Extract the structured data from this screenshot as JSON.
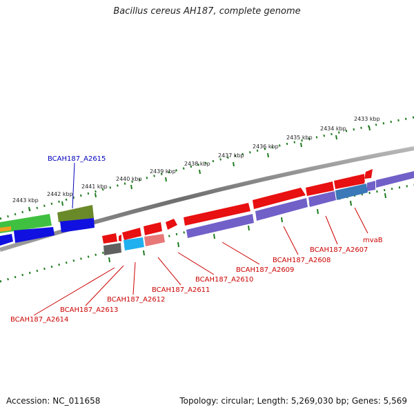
{
  "title": "Bacillus cereus AH187, complete genome",
  "footer": {
    "accession": "Accession: NC_011658",
    "topology": "Topology: circular; Length: 5,269,030 bp; Genes: 5,569"
  },
  "scale_labels": [
    "2433 kbp",
    "2434 kbp",
    "2435 kbp",
    "2436 kbp",
    "2437 kbp",
    "2438 kbp",
    "2439 kbp",
    "2440 kbp",
    "2441 kbp",
    "2442 kbp",
    "2443 kbp"
  ],
  "gene_labels": {
    "mvaB": "mvaB",
    "a2607": "BCAH187_A2607",
    "a2608": "BCAH187_A2608",
    "a2609": "BCAH187_A2609",
    "a2610": "BCAH187_A2610",
    "a2611": "BCAH187_A2611",
    "a2612": "BCAH187_A2612",
    "a2613": "BCAH187_A2613",
    "a2614": "BCAH187_A2614",
    "a2615": "BCAH187_A2615"
  },
  "colors": {
    "backbone": "#8a8a8a",
    "scale": "#1e7a1e",
    "gene_red": "#e81010",
    "gene_purple": "#7060c8",
    "gene_blue": "#1010e0",
    "gene_green": "#40c040",
    "gene_olive": "#6a8a2a",
    "gene_cyan": "#20b0f0",
    "gene_pink": "#e87878",
    "gene_gray": "#606060",
    "gene_steel": "#3a78b8",
    "label_red": "#cc0000",
    "label_blue": "#0000bb"
  }
}
